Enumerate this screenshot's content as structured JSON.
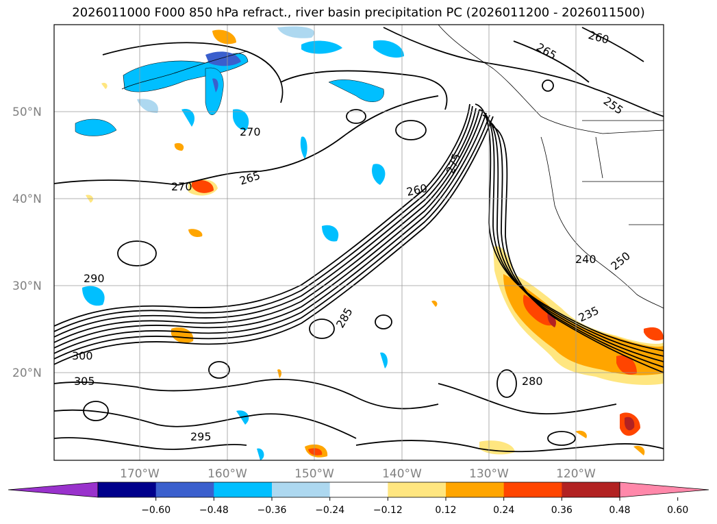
{
  "title": "2026011000 F000 850 hPa refract., river basin precipitation PC (2026011200 - 2026011500)",
  "lat_labels": [
    "50°N",
    "40°N",
    "30°N",
    "20°N"
  ],
  "lon_labels": [
    "170°W",
    "160°W",
    "150°W",
    "140°W",
    "130°W",
    "120°W"
  ],
  "contour_labels": [
    "270",
    "265",
    "270",
    "260",
    "275",
    "285",
    "290",
    "300",
    "305",
    "280",
    "295",
    "240",
    "250",
    "235",
    "255",
    "265",
    "260"
  ],
  "colorbar": {
    "ticks": [
      "−0.60",
      "−0.48",
      "−0.36",
      "−0.24",
      "−0.12",
      "0.12",
      "0.24",
      "0.36",
      "0.48",
      "0.60"
    ],
    "colors": [
      "#9932cc",
      "#00008b",
      "#3a5fcd",
      "#00bfff",
      "#add8f0",
      "#ffffff",
      "#ffe680",
      "#ffa500",
      "#ff4500",
      "#b22222",
      "#ff88aa"
    ]
  }
}
